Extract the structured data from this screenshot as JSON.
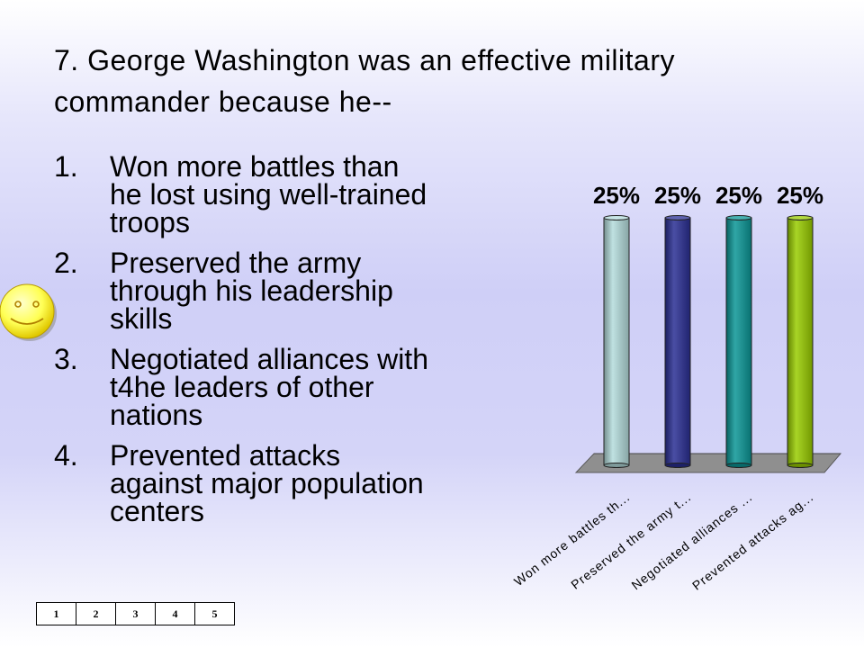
{
  "question": {
    "title": "7.  George Washington was an effective military commander because he--"
  },
  "answers": [
    {
      "num": "1.",
      "text": "Won more battles than he lost using well-trained troops"
    },
    {
      "num": "2.",
      "text": "Preserved the army through his leadership skills"
    },
    {
      "num": "3.",
      "text": "Negotiated alliances with t4he leaders of other nations"
    },
    {
      "num": "4.",
      "text": "Prevented attacks against major population centers"
    }
  ],
  "keypad": [
    "1",
    "2",
    "3",
    "4",
    "5"
  ],
  "icons": {
    "correct_marker": "smiley-face-icon"
  },
  "chart_data": {
    "type": "bar",
    "categories": [
      "Won more battles th...",
      "Preserved the army t...",
      "Negotiated alliances ...",
      "Prevented attacks ag..."
    ],
    "values": [
      25,
      25,
      25,
      25
    ],
    "data_labels": [
      "25%",
      "25%",
      "25%",
      "25%"
    ],
    "colors": [
      "#b4dcdc",
      "#2a2f94",
      "#0b9696",
      "#99cc00"
    ],
    "ylim": [
      0,
      25
    ],
    "title": "",
    "xlabel": "",
    "ylabel": "",
    "grid": false,
    "legend": "none"
  }
}
